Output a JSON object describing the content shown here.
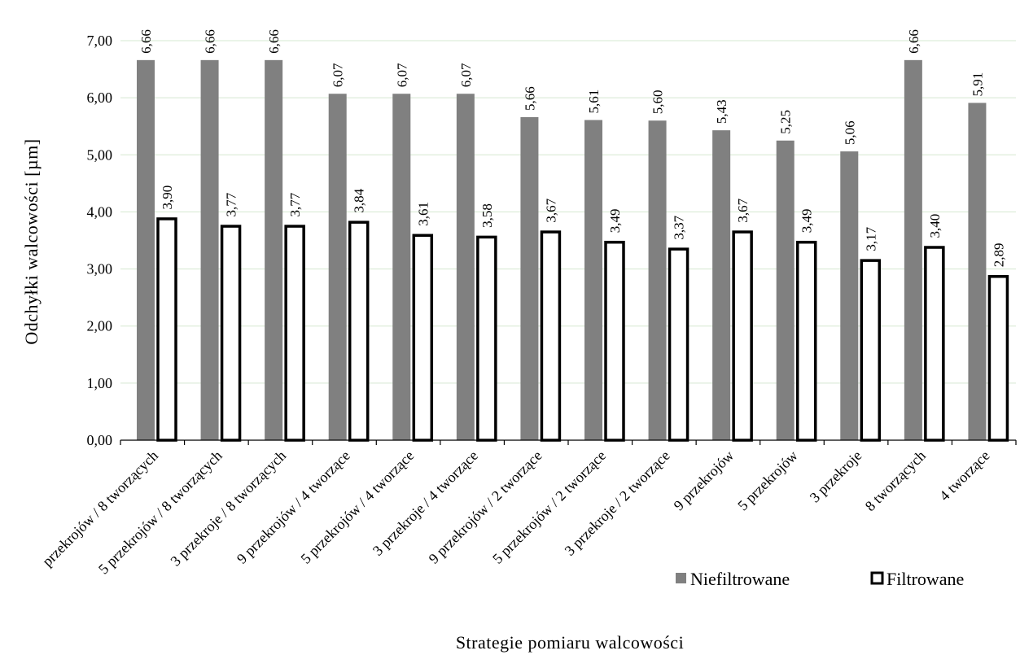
{
  "chart_data": {
    "type": "bar",
    "title": "",
    "xlabel": "Strategie pomiaru walcowości",
    "ylabel": "Odchyłki walcowości [µm]",
    "ylim": [
      0,
      7
    ],
    "yticks": [
      "0,00",
      "1,00",
      "2,00",
      "3,00",
      "4,00",
      "5,00",
      "6,00",
      "7,00"
    ],
    "grid": true,
    "legend_position": "bottom-right",
    "categories": [
      "przekrojów / 8 tworzących",
      "5 przekrojów / 8 tworzących",
      "3 przekroje / 8 tworzących",
      "9 przekrojów / 4 tworzące",
      "5 przekrojów / 4 tworzące",
      "3 przekroje / 4 tworzące",
      "9 przekrojów / 2 tworzące",
      "5 przekrojów / 2 tworzące",
      "3 przekroje / 2 tworzące",
      "9 przekrojów",
      "5 przekrojów",
      "3 przekroje",
      "8 tworzących",
      "4 tworzące"
    ],
    "series": [
      {
        "name": "Niefiltrowane",
        "color": "#808080",
        "values": [
          6.66,
          6.66,
          6.66,
          6.07,
          6.07,
          6.07,
          5.66,
          5.61,
          5.6,
          5.43,
          5.25,
          5.06,
          6.66,
          5.91
        ],
        "labels": [
          "6,66",
          "6,66",
          "6,66",
          "6,07",
          "6,07",
          "6,07",
          "5,66",
          "5,61",
          "5,60",
          "5,43",
          "5,25",
          "5,06",
          "6,66",
          "5,91"
        ]
      },
      {
        "name": "Filtrowane",
        "color": "#ffffff",
        "stroke": "#000000",
        "values": [
          3.9,
          3.77,
          3.77,
          3.84,
          3.61,
          3.58,
          3.67,
          3.49,
          3.37,
          3.67,
          3.49,
          3.17,
          3.4,
          2.89
        ],
        "labels": [
          "3,90",
          "3,77",
          "3,77",
          "3,84",
          "3,61",
          "3,58",
          "3,67",
          "3,49",
          "3,37",
          "3,67",
          "3,49",
          "3,17",
          "3,40",
          "2,89"
        ]
      }
    ]
  }
}
